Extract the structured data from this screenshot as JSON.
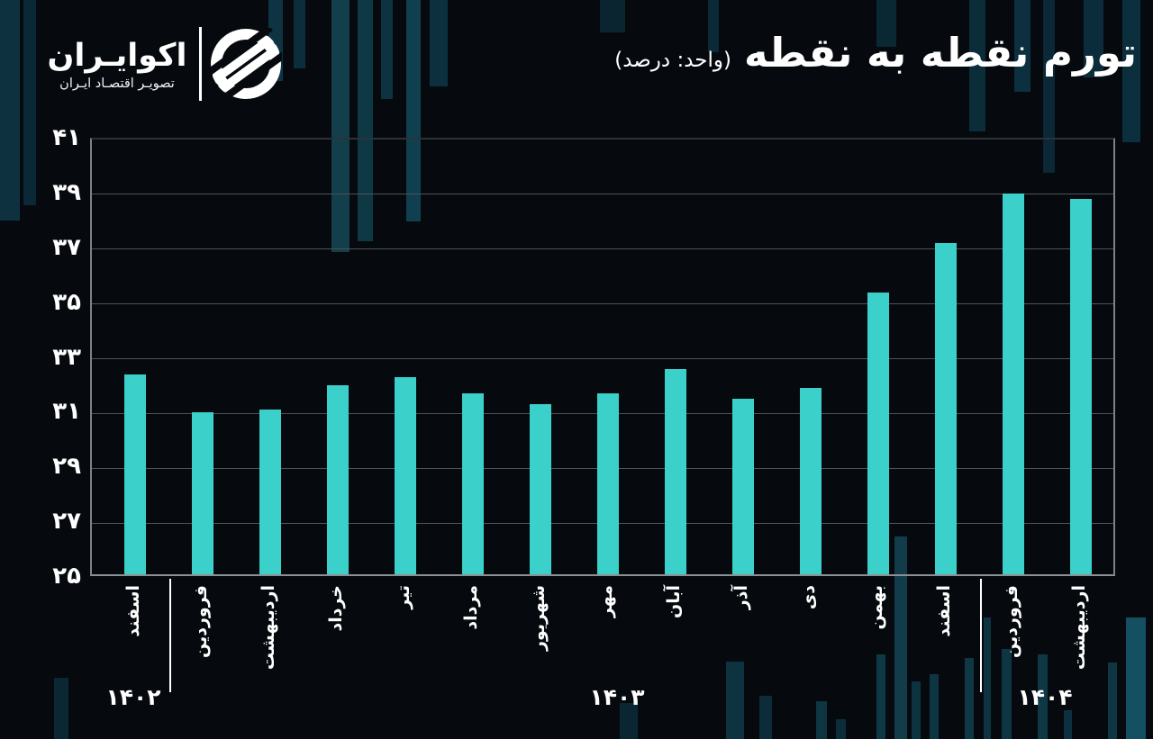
{
  "header": {
    "brand": {
      "name": "اکوایـران",
      "tagline": "تصویـر اقتصـاد ایـران"
    },
    "title": "تورم نقطه به نقطه",
    "unit": "(واحد: درصد)"
  },
  "chart_data": {
    "type": "bar",
    "title": "تورم نقطه به نقطه",
    "unit_label": "(واحد: درصد)",
    "categories": [
      "اسفند",
      "فروردین",
      "اردیبهشت",
      "خرداد",
      "تیر",
      "مرداد",
      "شهریور",
      "مهر",
      "آبان",
      "آذر",
      "دی",
      "بهمن",
      "اسفند",
      "فروردین",
      "اردیبهشت"
    ],
    "values": [
      32.3,
      30.9,
      31.0,
      31.9,
      32.2,
      31.6,
      31.2,
      31.6,
      32.5,
      31.4,
      31.8,
      35.3,
      37.1,
      38.9,
      38.7
    ],
    "year_groups": [
      {
        "label": "۱۴۰۲",
        "start_index": 0,
        "end_index": 0
      },
      {
        "label": "۱۴۰۳",
        "start_index": 1,
        "end_index": 12
      },
      {
        "label": "۱۴۰۴",
        "start_index": 13,
        "end_index": 14
      }
    ],
    "y_axis": {
      "min": 25,
      "max": 41,
      "step": 2,
      "tick_labels": [
        "۲۵",
        "۲۷",
        "۲۹",
        "۳۱",
        "۳۳",
        "۳۵",
        "۳۷",
        "۳۹",
        "۴۱"
      ]
    },
    "grid": true,
    "legend": false,
    "bar_color": "#3bd0c9",
    "background_color": "#060a0e",
    "text_color": "#ffffff"
  }
}
